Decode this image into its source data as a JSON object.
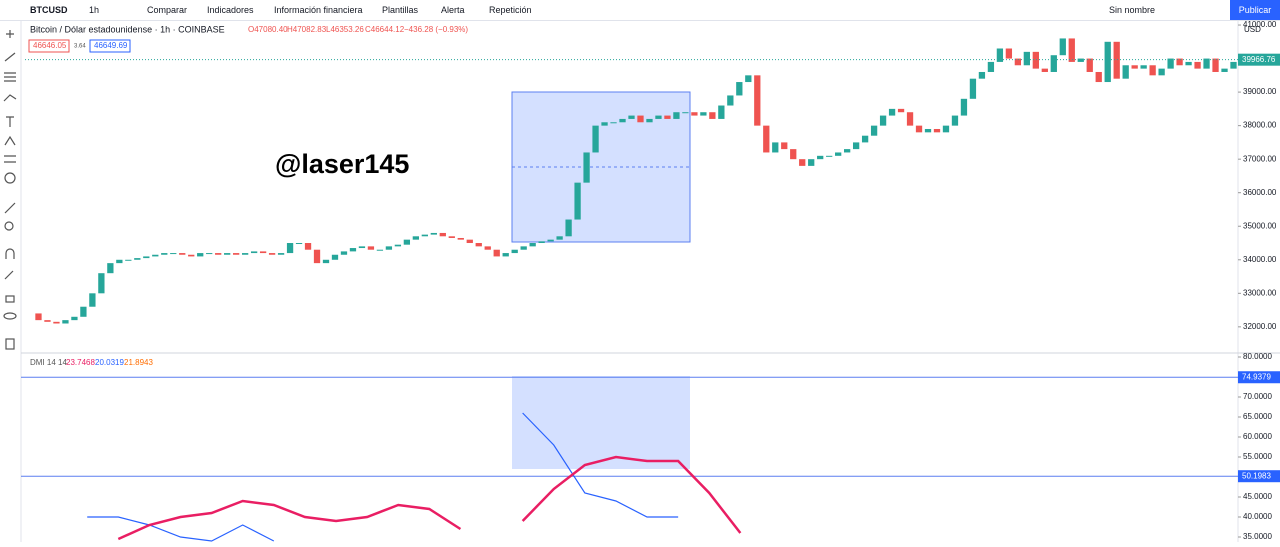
{
  "toolbar": {
    "symbol": "BTCUSD",
    "interval": "1h",
    "items": [
      "Comparar",
      "Indicadores",
      "Información financiera",
      "Plantillas",
      "Alerta",
      "Repetición"
    ],
    "layout_name": "Sin nombre",
    "publish": "Publicar"
  },
  "legend": {
    "title": "Bitcoin / Dólar estadounidense · 1h · COINBASE",
    "ohlc": [
      "O47080.40",
      "H47082.83",
      "L46353.26",
      "C46644.12",
      "−436.28 (−0.93%)"
    ],
    "sell": "46646.05",
    "spread": "3.64",
    "buy": "46649.69"
  },
  "watermark": "@laser145",
  "currency": "USD",
  "chart_data": [
    {
      "type": "candlestick",
      "up_color": "#26a69a",
      "down_color": "#ef5350",
      "ylim": [
        31250,
        41150
      ],
      "yticks": [
        {
          "value": 32000,
          "label": "32000.00"
        },
        {
          "value": 33000,
          "label": "33000.00"
        },
        {
          "value": 34000,
          "label": "34000.00"
        },
        {
          "value": 35000,
          "label": "35000.00"
        },
        {
          "value": 36000,
          "label": "36000.00"
        },
        {
          "value": 37000,
          "label": "37000.00"
        },
        {
          "value": 38000,
          "label": "38000.00"
        },
        {
          "value": 39000,
          "label": "39000.00"
        },
        {
          "value": 40000,
          "label": "40000.00"
        },
        {
          "value": 41000,
          "label": "41000.00"
        }
      ],
      "last": 39966.76,
      "closes": [
        32400,
        32200,
        32150,
        32100,
        32200,
        32300,
        32600,
        33000,
        33600,
        33900,
        34000,
        34000,
        34050,
        34100,
        34150,
        34200,
        34200,
        34150,
        34100,
        34200,
        34200,
        34150,
        34200,
        34150,
        34200,
        34250,
        34200,
        34150,
        34200,
        34500,
        34500,
        34300,
        33900,
        34000,
        34150,
        34250,
        34350,
        34400,
        34300,
        34300,
        34400,
        34450,
        34600,
        34700,
        34750,
        34800,
        34700,
        34650,
        34600,
        34500,
        34400,
        34300,
        34100,
        34200,
        34300,
        34400,
        34500,
        34550,
        34600,
        34700,
        35200,
        36300,
        37200,
        38000,
        38100,
        38100,
        38200,
        38300,
        38100,
        38200,
        38300,
        38200,
        38400,
        38400,
        38300,
        38400,
        38200,
        38600,
        38900,
        39300,
        39500,
        38000,
        37200,
        37500,
        37300,
        37000,
        36800,
        37000,
        37100,
        37100,
        37200,
        37300,
        37500,
        37700,
        38000,
        38300,
        38500,
        38400,
        38000,
        37800,
        37900,
        37800,
        38000,
        38300,
        38800,
        39400,
        39600,
        39900,
        40300,
        40000,
        39800,
        40200,
        39700,
        39600,
        40100,
        40600,
        39900,
        40000,
        39600,
        39300,
        40500,
        39400,
        39800,
        39700,
        39800,
        39500,
        39700,
        40000,
        39800,
        39900,
        39700,
        40000,
        39600,
        39700,
        39900
      ]
    },
    {
      "type": "line",
      "title": "DMI 14 14",
      "legend_values": [
        "23.7468",
        "20.0319",
        "21.8943"
      ],
      "legend_colors": [
        "#e91e63",
        "#2962ff",
        "#ff6d00"
      ],
      "ylim": [
        33.75,
        81
      ],
      "yticks": [
        {
          "value": 80,
          "label": "80.0000"
        },
        {
          "value": 75,
          "label": "75.0000"
        },
        {
          "value": 70,
          "label": "70.0000"
        },
        {
          "value": 65,
          "label": "65.0000"
        },
        {
          "value": 60,
          "label": "60.0000"
        },
        {
          "value": 55,
          "label": "55.0000"
        },
        {
          "value": 50,
          "label": "50.0000"
        },
        {
          "value": 45,
          "label": "45.0000"
        },
        {
          "value": 40,
          "label": "40.0000"
        },
        {
          "value": 35,
          "label": "35.0000"
        }
      ],
      "levels": [
        74.9379,
        50.1983
      ],
      "series": [
        {
          "color": "#2962ff",
          "values": [
            null,
            null,
            40,
            40,
            38,
            35,
            34,
            38,
            34,
            null,
            null,
            null,
            null,
            null,
            null,
            null,
            66,
            58,
            46,
            44,
            40,
            40,
            null,
            null,
            null,
            null,
            null,
            null,
            null,
            null,
            null,
            null,
            null,
            null,
            null,
            null,
            null,
            null,
            null,
            null
          ]
        },
        {
          "color": "#e91e63",
          "values": [
            null,
            null,
            null,
            34.5,
            38,
            40,
            41,
            44,
            43,
            40,
            39,
            40,
            43,
            42,
            37,
            null,
            39,
            47,
            53,
            55,
            54,
            54,
            46,
            36,
            null,
            null,
            null,
            null,
            null,
            null,
            null,
            null,
            null,
            null,
            null,
            null,
            null,
            null,
            null,
            null
          ]
        }
      ]
    }
  ]
}
